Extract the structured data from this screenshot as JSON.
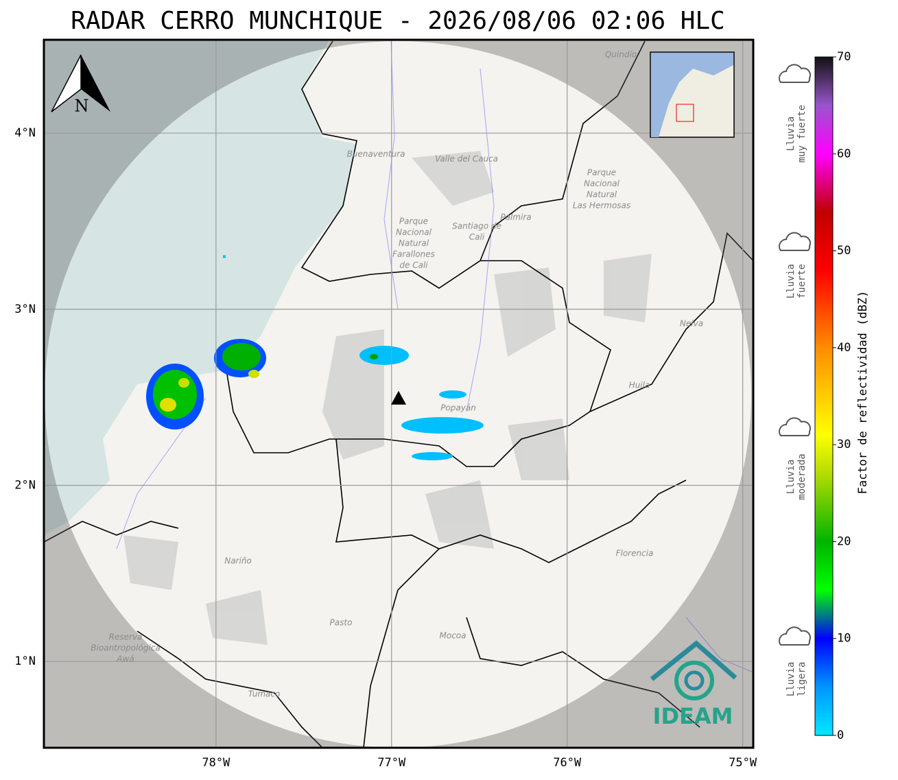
{
  "title": "RADAR CERRO MUNCHIQUE - 2026/08/06 02:06 HLC",
  "map": {
    "xlim": [
      -78.98,
      -74.94
    ],
    "ylim": [
      0.51,
      4.53
    ],
    "lon_ticks": [
      {
        "value": -78,
        "label": "78°W"
      },
      {
        "value": -77,
        "label": "77°W"
      },
      {
        "value": -76,
        "label": "76°W"
      },
      {
        "value": -75,
        "label": "75°W"
      }
    ],
    "lat_ticks": [
      {
        "value": 4,
        "label": "4°N"
      },
      {
        "value": 3,
        "label": "3°N"
      },
      {
        "value": 2,
        "label": "2°N"
      },
      {
        "value": 1,
        "label": "1°N"
      }
    ],
    "radar": {
      "lon": -76.96,
      "lat": 2.49
    },
    "north_label": "N",
    "places": [
      {
        "lines": [
          "Quindío"
        ]
      },
      {
        "lines": [
          "Buenaventura"
        ]
      },
      {
        "lines": [
          "Valle del Cauca"
        ]
      },
      {
        "lines": [
          "Santiago de",
          "Cali"
        ]
      },
      {
        "lines": [
          "Palmira"
        ]
      },
      {
        "lines": [
          "Parque",
          "Nacional",
          "Natural",
          "Farallones",
          "de Cali"
        ]
      },
      {
        "lines": [
          "Parque",
          "Nacional",
          "Natural",
          "Las Hermosas"
        ]
      },
      {
        "lines": [
          "Neiva"
        ]
      },
      {
        "lines": [
          "Huila"
        ]
      },
      {
        "lines": [
          "Popayán"
        ]
      },
      {
        "lines": [
          "Nariño"
        ]
      },
      {
        "lines": [
          "Pasto"
        ]
      },
      {
        "lines": [
          "Mocoa"
        ]
      },
      {
        "lines": [
          "Florencia"
        ]
      },
      {
        "lines": [
          "Reserva",
          "Bioantropológica",
          "Awá"
        ]
      },
      {
        "lines": [
          "Tumaco"
        ]
      }
    ]
  },
  "colorbar": {
    "label": "Factor de reflectividad (dBZ)",
    "range": [
      0,
      70
    ],
    "ticks": [
      0,
      10,
      20,
      30,
      40,
      50,
      60,
      70
    ],
    "stops": [
      {
        "value": 0,
        "color": "#00e8ff"
      },
      {
        "value": 5,
        "color": "#0096ff"
      },
      {
        "value": 10,
        "color": "#0000ff"
      },
      {
        "value": 15,
        "color": "#00ff00"
      },
      {
        "value": 20,
        "color": "#00b400"
      },
      {
        "value": 27,
        "color": "#b4dc00"
      },
      {
        "value": 31,
        "color": "#ffff00"
      },
      {
        "value": 40,
        "color": "#ff8c00"
      },
      {
        "value": 48,
        "color": "#ff0000"
      },
      {
        "value": 54,
        "color": "#c00000"
      },
      {
        "value": 60,
        "color": "#ff00ff"
      },
      {
        "value": 65,
        "color": "#9955cc"
      },
      {
        "value": 70,
        "color": "#111111"
      }
    ]
  },
  "rain_levels": [
    {
      "lines": [
        "Lluvia",
        "muy fuerte"
      ]
    },
    {
      "lines": [
        "Lluvia",
        "fuerte"
      ]
    },
    {
      "lines": [
        "Lluvia",
        "moderada"
      ]
    },
    {
      "lines": [
        "Lluvia",
        "ligera"
      ]
    }
  ],
  "logo": "IDEAM"
}
